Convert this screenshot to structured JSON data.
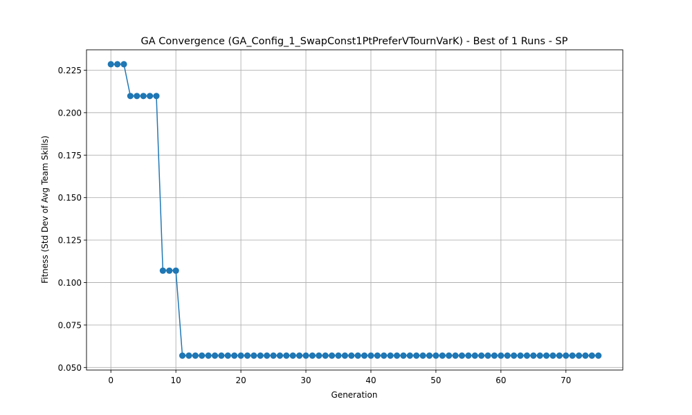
{
  "chart_data": {
    "type": "line",
    "title": "GA Convergence (GA_Config_1_SwapConst1PtPreferVTournVarK) - Best of 1 Runs - SP",
    "xlabel": "Generation",
    "ylabel": "Fitness (Std Dev of Avg Team Skills)",
    "xlim": [
      -3.75,
      78.75
    ],
    "ylim": [
      0.0485,
      0.237
    ],
    "xticks": [
      0,
      10,
      20,
      30,
      40,
      50,
      60,
      70
    ],
    "yticks": [
      0.05,
      0.075,
      0.1,
      0.125,
      0.15,
      0.175,
      0.2,
      0.225
    ],
    "ytick_labels": [
      "0.050",
      "0.075",
      "0.100",
      "0.125",
      "0.150",
      "0.175",
      "0.200",
      "0.225"
    ],
    "grid": true,
    "series_color": "#1f77b4",
    "grid_color": "#b0b0b0",
    "series": [
      {
        "marker": "circle",
        "x": [
          0,
          1,
          2,
          3,
          4,
          5,
          6,
          7,
          8,
          9,
          10,
          11,
          12,
          13,
          14,
          15,
          16,
          17,
          18,
          19,
          20,
          21,
          22,
          23,
          24,
          25,
          26,
          27,
          28,
          29,
          30,
          31,
          32,
          33,
          34,
          35,
          36,
          37,
          38,
          39,
          40,
          41,
          42,
          43,
          44,
          45,
          46,
          47,
          48,
          49,
          50,
          51,
          52,
          53,
          54,
          55,
          56,
          57,
          58,
          59,
          60,
          61,
          62,
          63,
          64,
          65,
          66,
          67,
          68,
          69,
          70,
          71,
          72,
          73,
          74,
          75
        ],
        "values": [
          0.2285,
          0.2285,
          0.2285,
          0.2098,
          0.2098,
          0.2098,
          0.2098,
          0.2098,
          0.107,
          0.107,
          0.107,
          0.057,
          0.057,
          0.057,
          0.057,
          0.057,
          0.057,
          0.057,
          0.057,
          0.057,
          0.057,
          0.057,
          0.057,
          0.057,
          0.057,
          0.057,
          0.057,
          0.057,
          0.057,
          0.057,
          0.057,
          0.057,
          0.057,
          0.057,
          0.057,
          0.057,
          0.057,
          0.057,
          0.057,
          0.057,
          0.057,
          0.057,
          0.057,
          0.057,
          0.057,
          0.057,
          0.057,
          0.057,
          0.057,
          0.057,
          0.057,
          0.057,
          0.057,
          0.057,
          0.057,
          0.057,
          0.057,
          0.057,
          0.057,
          0.057,
          0.057,
          0.057,
          0.057,
          0.057,
          0.057,
          0.057,
          0.057,
          0.057,
          0.057,
          0.057,
          0.057,
          0.057,
          0.057,
          0.057,
          0.057,
          0.057
        ]
      }
    ]
  }
}
